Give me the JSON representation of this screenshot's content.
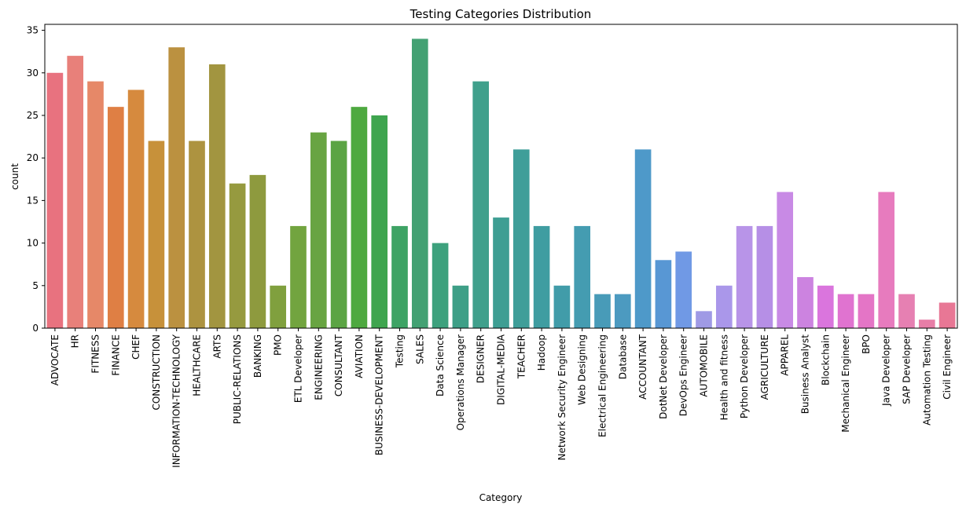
{
  "chart_data": {
    "type": "bar",
    "title": "Testing Categories Distribution",
    "xlabel": "Category",
    "ylabel": "count",
    "ylim": [
      0,
      35.7
    ],
    "yticks": [
      0,
      5,
      10,
      15,
      20,
      25,
      30,
      35
    ],
    "grid": false,
    "categories": [
      "ADVOCATE",
      "HR",
      "FITNESS",
      "FINANCE",
      "CHEF",
      "CONSTRUCTION",
      "INFORMATION-TECHNOLOGY",
      "HEALTHCARE",
      "ARTS",
      "PUBLIC-RELATIONS",
      "BANKING",
      "PMO",
      "ETL Developer",
      "ENGINEERING",
      "CONSULTANT",
      "AVIATION",
      "BUSINESS-DEVELOPMENT",
      "Testing",
      "SALES",
      "Data Science",
      "Operations Manager",
      "DESIGNER",
      "DIGITAL-MEDIA",
      "TEACHER",
      "Hadoop",
      "Network Security Engineer",
      "Web Designing",
      "Electrical Engineering",
      "Database",
      "ACCOUNTANT",
      "DotNet Developer",
      "DevOps Engineer",
      "AUTOMOBILE",
      "Health and fitness",
      "Python Developer",
      "AGRICULTURE",
      "APPAREL",
      "Business Analyst",
      "Blockchain",
      "Mechanical Engineer",
      "BPO",
      "Java Developer",
      "SAP Developer",
      "Automation Testing",
      "Civil Engineer"
    ],
    "values": [
      30,
      32,
      29,
      26,
      28,
      22,
      33,
      22,
      31,
      17,
      18,
      5,
      12,
      23,
      22,
      26,
      25,
      12,
      34,
      10,
      5,
      29,
      13,
      21,
      12,
      5,
      12,
      4,
      4,
      21,
      8,
      9,
      2,
      5,
      12,
      12,
      16,
      6,
      5,
      4,
      4,
      16,
      4,
      1,
      3
    ],
    "colors": [
      "#e8727f",
      "#e8807a",
      "#e68868",
      "#df7f44",
      "#d68a3e",
      "#c7913a",
      "#bb9140",
      "#ad9340",
      "#a29540",
      "#969a3f",
      "#8e9a3e",
      "#80a03e",
      "#72a43f",
      "#68a442",
      "#5ba444",
      "#4ea940",
      "#3fa54f",
      "#3ea365",
      "#43a173",
      "#3da17d",
      "#3e9f87",
      "#40a08c",
      "#3e9e93",
      "#3f9e99",
      "#3f9da1",
      "#419ca9",
      "#449cb1",
      "#489bb8",
      "#4c9ac0",
      "#4e99c9",
      "#5897d4",
      "#7099e5",
      "#9f9ae5",
      "#aa97ea",
      "#b894e8",
      "#b68fe6",
      "#c88ae5",
      "#cc83e0",
      "#da75dd",
      "#e073d0",
      "#e475c6",
      "#e77bbe",
      "#e680b2",
      "#e77ea7",
      "#e87795"
    ]
  }
}
